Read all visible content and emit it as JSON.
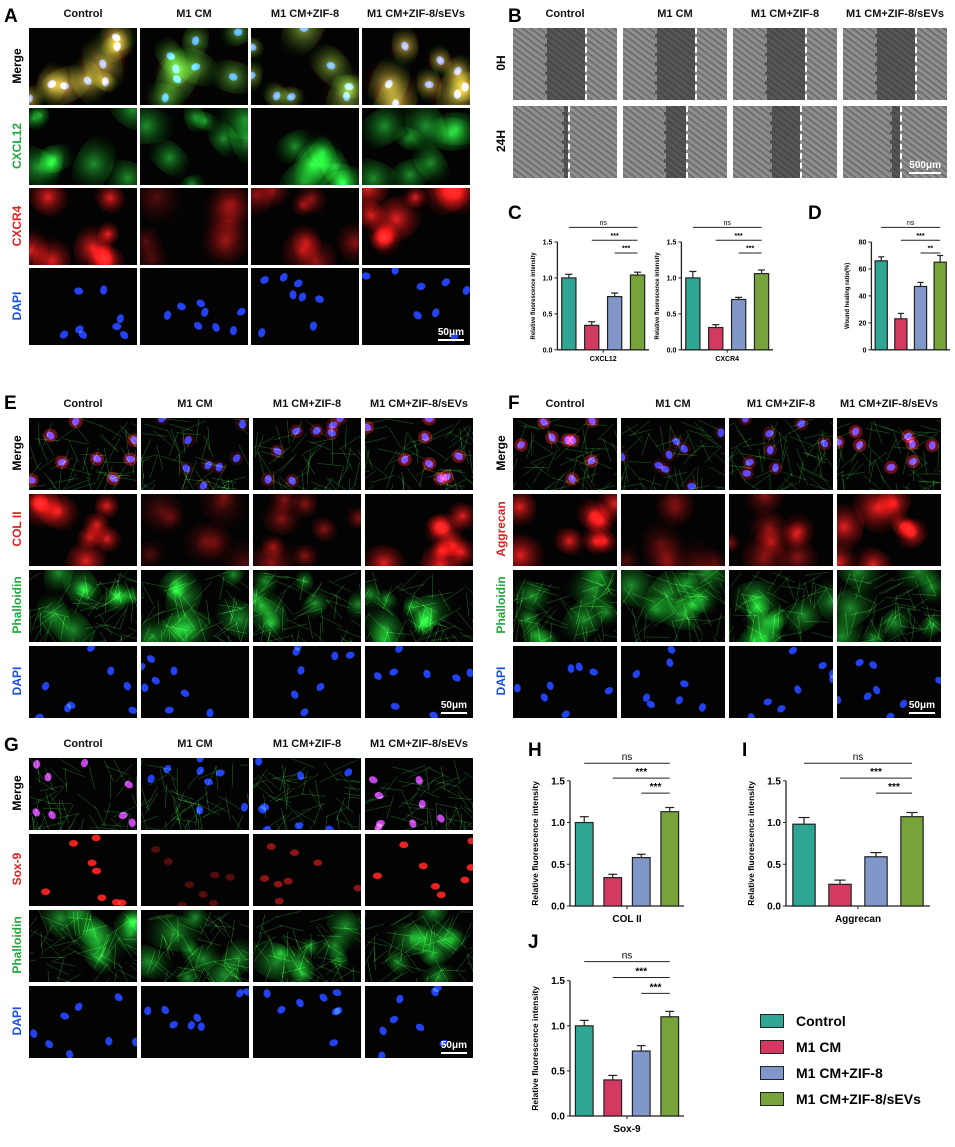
{
  "panels": {
    "A": "A",
    "B": "B",
    "C": "C",
    "D": "D",
    "E": "E",
    "F": "F",
    "G": "G",
    "H": "H",
    "I": "I",
    "J": "J"
  },
  "groups": [
    "Control",
    "M1 CM",
    "M1 CM+ZIF-8",
    "M1 CM+ZIF-8/sEVs"
  ],
  "colors": {
    "Control": "#2fa593",
    "M1 CM": "#d23a62",
    "M1 CM+ZIF-8": "#8197c9",
    "M1 CM+ZIF-8/sEVs": "#78a33a"
  },
  "panelA": {
    "rows": [
      {
        "label": "Merge",
        "color": "#000"
      },
      {
        "label": "CXCL12",
        "color": "#1fa83c"
      },
      {
        "label": "CXCR4",
        "color": "#e02020"
      },
      {
        "label": "DAPI",
        "color": "#1a4fd8"
      }
    ],
    "scale": "50μm"
  },
  "panelB": {
    "rows": [
      {
        "label": "0H",
        "color": "#000"
      },
      {
        "label": "24H",
        "color": "#000"
      }
    ],
    "scale": "500μm"
  },
  "panelE": {
    "rows": [
      {
        "label": "Merge",
        "color": "#000"
      },
      {
        "label": "COL II",
        "color": "#e02020"
      },
      {
        "label": "Phalloidin",
        "color": "#1fa83c"
      },
      {
        "label": "DAPI",
        "color": "#1a4fd8"
      }
    ],
    "scale": "50μm"
  },
  "panelF": {
    "rows": [
      {
        "label": "Merge",
        "color": "#000"
      },
      {
        "label": "Aggrecan",
        "color": "#e02020"
      },
      {
        "label": "Phalloidin",
        "color": "#1fa83c"
      },
      {
        "label": "DAPI",
        "color": "#1a4fd8"
      }
    ],
    "scale": "50μm"
  },
  "panelG": {
    "rows": [
      {
        "label": "Merge",
        "color": "#000"
      },
      {
        "label": "Sox-9",
        "color": "#e02020"
      },
      {
        "label": "Phalloidin",
        "color": "#1fa83c"
      },
      {
        "label": "DAPI",
        "color": "#1a4fd8"
      }
    ],
    "scale": "50μm"
  },
  "legend": [
    "Control",
    "M1 CM",
    "M1 CM+ZIF-8",
    "M1 CM+ZIF-8/sEVs"
  ],
  "chart_data": [
    {
      "id": "C1",
      "type": "bar",
      "xlabel": "CXCL12",
      "ylabel": "Relative fluorescence intensity",
      "ylim": [
        0,
        1.5
      ],
      "yticks": [
        "0.0",
        "0.5",
        "1.0",
        "1.5"
      ],
      "categories": [
        "Control",
        "M1 CM",
        "M1 CM+ZIF-8",
        "M1 CM+ZIF-8/sEVs"
      ],
      "values": [
        1.0,
        0.34,
        0.74,
        1.04
      ],
      "errors": [
        0.05,
        0.05,
        0.05,
        0.04
      ],
      "significance": [
        {
          "from": 0,
          "to": 3,
          "label": "ns"
        },
        {
          "from": 1,
          "to": 3,
          "label": "***"
        },
        {
          "from": 2,
          "to": 3,
          "label": "***"
        }
      ]
    },
    {
      "id": "C2",
      "type": "bar",
      "xlabel": "CXCR4",
      "ylabel": "Relative fluorescence intensity",
      "ylim": [
        0,
        1.5
      ],
      "yticks": [
        "0.0",
        "0.5",
        "1.0",
        "1.5"
      ],
      "categories": [
        "Control",
        "M1 CM",
        "M1 CM+ZIF-8",
        "M1 CM+ZIF-8/sEVs"
      ],
      "values": [
        1.0,
        0.31,
        0.7,
        1.06
      ],
      "errors": [
        0.09,
        0.04,
        0.03,
        0.05
      ],
      "significance": [
        {
          "from": 0,
          "to": 3,
          "label": "ns"
        },
        {
          "from": 1,
          "to": 3,
          "label": "***"
        },
        {
          "from": 2,
          "to": 3,
          "label": "***"
        }
      ]
    },
    {
      "id": "D",
      "type": "bar",
      "xlabel": "",
      "ylabel": "Wound healing ratio(%)",
      "ylim": [
        0,
        80
      ],
      "yticks": [
        "0",
        "20",
        "40",
        "60",
        "80"
      ],
      "categories": [
        "Control",
        "M1 CM",
        "M1 CM+ZIF-8",
        "M1 CM+ZIF-8/sEVs"
      ],
      "values": [
        66,
        23,
        47,
        65
      ],
      "errors": [
        3,
        4,
        3,
        5
      ],
      "significance": [
        {
          "from": 0,
          "to": 3,
          "label": "ns"
        },
        {
          "from": 1,
          "to": 3,
          "label": "***"
        },
        {
          "from": 2,
          "to": 3,
          "label": "**"
        }
      ]
    },
    {
      "id": "H",
      "type": "bar",
      "xlabel": "COL II",
      "ylabel": "Relative fluorescence intensity",
      "ylim": [
        0,
        1.5
      ],
      "yticks": [
        "0.0",
        "0.5",
        "1.0",
        "1.5"
      ],
      "categories": [
        "Control",
        "M1 CM",
        "M1 CM+ZIF-8",
        "M1 CM+ZIF-8/sEVs"
      ],
      "values": [
        1.0,
        0.34,
        0.58,
        1.13
      ],
      "errors": [
        0.07,
        0.04,
        0.04,
        0.05
      ],
      "significance": [
        {
          "from": 0,
          "to": 3,
          "label": "ns"
        },
        {
          "from": 1,
          "to": 3,
          "label": "***"
        },
        {
          "from": 2,
          "to": 3,
          "label": "***"
        }
      ]
    },
    {
      "id": "I",
      "type": "bar",
      "xlabel": "Aggrecan",
      "ylabel": "Relative fluorescence intensity",
      "ylim": [
        0,
        1.5
      ],
      "yticks": [
        "0.0",
        "0.5",
        "1.0",
        "1.5"
      ],
      "categories": [
        "Control",
        "M1 CM",
        "M1 CM+ZIF-8",
        "M1 CM+ZIF-8/sEVs"
      ],
      "values": [
        0.98,
        0.26,
        0.59,
        1.07
      ],
      "errors": [
        0.08,
        0.05,
        0.05,
        0.05
      ],
      "significance": [
        {
          "from": 0,
          "to": 3,
          "label": "ns"
        },
        {
          "from": 1,
          "to": 3,
          "label": "***"
        },
        {
          "from": 2,
          "to": 3,
          "label": "***"
        }
      ]
    },
    {
      "id": "J",
      "type": "bar",
      "xlabel": "Sox-9",
      "ylabel": "Relative fluorescence intensity",
      "ylim": [
        0,
        1.5
      ],
      "yticks": [
        "0.0",
        "0.5",
        "1.0",
        "1.5"
      ],
      "categories": [
        "Control",
        "M1 CM",
        "M1 CM+ZIF-8",
        "M1 CM+ZIF-8/sEVs"
      ],
      "values": [
        1.0,
        0.4,
        0.72,
        1.1
      ],
      "errors": [
        0.06,
        0.05,
        0.06,
        0.06
      ],
      "significance": [
        {
          "from": 0,
          "to": 3,
          "label": "ns"
        },
        {
          "from": 1,
          "to": 3,
          "label": "***"
        },
        {
          "from": 2,
          "to": 3,
          "label": "***"
        }
      ]
    }
  ]
}
